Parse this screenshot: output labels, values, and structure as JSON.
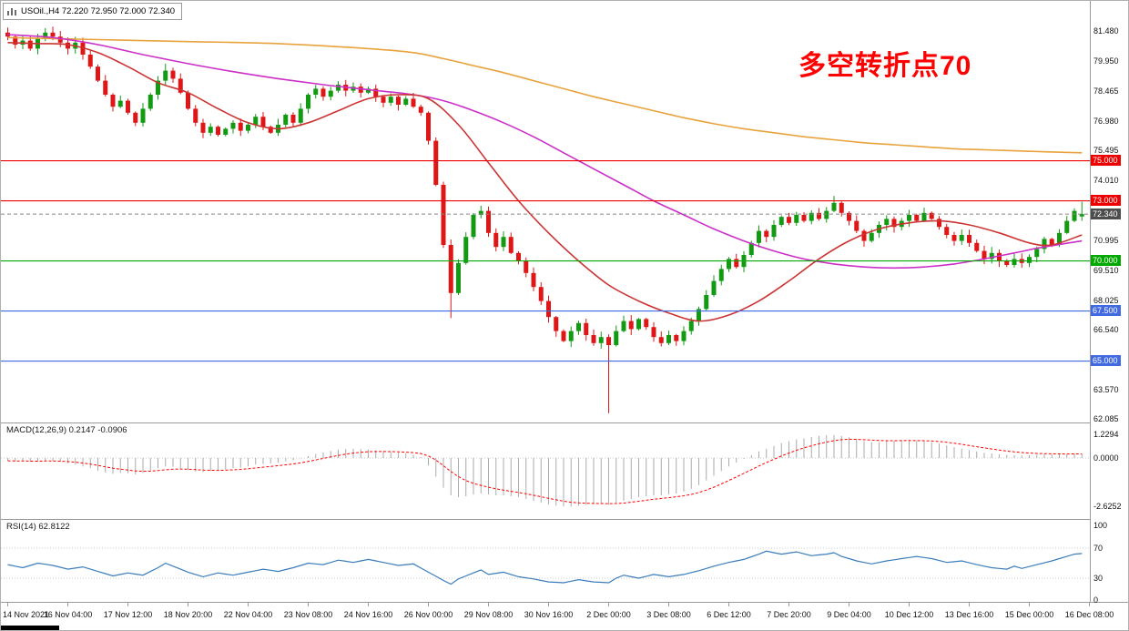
{
  "title_bar": {
    "text": "USOil.,H4 72.220 72.950 72.000 72.340"
  },
  "annotation": {
    "text": "多空转折点70",
    "color": "#FF0000"
  },
  "panels": {
    "macd": {
      "label": "MACD(12,26,9) 0.2147 -0.0906",
      "axis_labels": [
        "1.2294",
        "0.0000",
        "-2.6252"
      ]
    },
    "rsi": {
      "label": "RSI(14) 62.8122",
      "axis_labels": [
        "100",
        "70",
        "30",
        "0"
      ]
    }
  },
  "price_axis": {
    "labels": [
      "81.480",
      "79.950",
      "78.465",
      "76.980",
      "75.495",
      "74.010",
      "70.995",
      "69.510",
      "68.025",
      "66.540",
      "63.570",
      "62.085"
    ]
  },
  "hlines": [
    {
      "price": 75.0,
      "label": "75.000",
      "color": "#EE0000"
    },
    {
      "price": 73.0,
      "label": "73.000",
      "color": "#EE0000"
    },
    {
      "price": 70.0,
      "label": "70.000",
      "color": "#00A800"
    },
    {
      "price": 67.5,
      "label": "67.500",
      "color": "#4169E1"
    },
    {
      "price": 65.0,
      "label": "65.000",
      "color": "#4169E1"
    }
  ],
  "current_price": {
    "value": 72.34,
    "label": "72.340",
    "badge_color": "#4D4D4D"
  },
  "time_axis": {
    "labels": [
      {
        "bar": 0,
        "text": "14 Nov 2021"
      },
      {
        "bar": 8,
        "text": "16 Nov 04:00"
      },
      {
        "bar": 16,
        "text": "17 Nov 12:00"
      },
      {
        "bar": 24,
        "text": "18 Nov 20:00"
      },
      {
        "bar": 32,
        "text": "22 Nov 04:00"
      },
      {
        "bar": 40,
        "text": "23 Nov 08:00"
      },
      {
        "bar": 48,
        "text": "24 Nov 16:00"
      },
      {
        "bar": 56,
        "text": "26 Nov 00:00"
      },
      {
        "bar": 64,
        "text": "29 Nov 08:00"
      },
      {
        "bar": 72,
        "text": "30 Nov 16:00"
      },
      {
        "bar": 80,
        "text": "2 Dec 00:00"
      },
      {
        "bar": 88,
        "text": "3 Dec 08:00"
      },
      {
        "bar": 96,
        "text": "6 Dec 12:00"
      },
      {
        "bar": 104,
        "text": "7 Dec 20:00"
      },
      {
        "bar": 112,
        "text": "9 Dec 04:00"
      },
      {
        "bar": 120,
        "text": "10 Dec 12:00"
      },
      {
        "bar": 128,
        "text": "13 Dec 16:00"
      },
      {
        "bar": 136,
        "text": "15 Dec 00:00"
      },
      {
        "bar": 144,
        "text": "16 Dec 08:00"
      }
    ]
  },
  "ui": {
    "up_color": "#129A12",
    "down_color": "#E01616"
  },
  "chart_data": {
    "type": "candlestick",
    "symbol": "USOil",
    "timeframe": "H4",
    "ohlc_current": {
      "open": 72.22,
      "high": 72.95,
      "low": 72.0,
      "close": 72.34
    },
    "first_open": 81.4,
    "closes": [
      81.2,
      80.8,
      81.0,
      80.6,
      81.1,
      81.4,
      81.2,
      80.9,
      80.6,
      80.9,
      80.3,
      79.7,
      79.0,
      78.3,
      77.7,
      78.0,
      77.4,
      76.9,
      77.6,
      78.3,
      79.0,
      79.5,
      79.1,
      78.4,
      77.6,
      76.9,
      76.4,
      76.7,
      76.3,
      76.6,
      76.9,
      76.5,
      76.8,
      77.2,
      76.7,
      76.4,
      76.8,
      77.3,
      76.9,
      77.6,
      78.3,
      78.6,
      78.2,
      78.5,
      78.8,
      78.5,
      78.7,
      78.4,
      78.6,
      78.2,
      77.9,
      78.2,
      77.8,
      78.1,
      77.7,
      77.4,
      76.0,
      73.8,
      70.8,
      68.4,
      69.9,
      71.2,
      72.3,
      72.5,
      71.4,
      70.7,
      71.2,
      70.4,
      70.0,
      69.4,
      68.7,
      68.0,
      67.2,
      66.5,
      66.0,
      66.5,
      66.9,
      66.3,
      65.9,
      66.2,
      65.8,
      66.5,
      67.0,
      66.6,
      67.1,
      66.7,
      66.2,
      65.9,
      66.3,
      66.0,
      66.5,
      67.0,
      67.6,
      68.3,
      69.0,
      69.6,
      70.1,
      69.7,
      70.3,
      70.9,
      71.5,
      71.2,
      71.8,
      72.2,
      71.9,
      72.3,
      72.0,
      72.4,
      72.1,
      72.5,
      72.9,
      72.4,
      72.0,
      71.5,
      71.0,
      71.4,
      71.8,
      72.1,
      71.7,
      72.0,
      72.3,
      72.0,
      72.4,
      72.1,
      71.7,
      71.3,
      71.0,
      71.3,
      70.9,
      70.5,
      70.1,
      70.4,
      70.0,
      69.8,
      70.1,
      69.9,
      70.2,
      70.6,
      71.1,
      70.8,
      71.4,
      72.0,
      72.5,
      72.34
    ],
    "wick_overrides": {
      "5": {
        "high": 81.62
      },
      "21": {
        "high": 79.85
      },
      "59": {
        "low": 67.15
      },
      "80": {
        "low": 62.4
      },
      "110": {
        "high": 73.25
      },
      "143": {
        "open": 72.22,
        "high": 72.95,
        "low": 72.0
      }
    },
    "moving_averages": [
      {
        "name": "slow-ma",
        "color": "#E8A33D",
        "points": [
          [
            0,
            81.15
          ],
          [
            12,
            81.05
          ],
          [
            24,
            80.95
          ],
          [
            36,
            80.85
          ],
          [
            48,
            80.6
          ],
          [
            54,
            80.4
          ],
          [
            58,
            80.1
          ],
          [
            62,
            79.75
          ],
          [
            66,
            79.4
          ],
          [
            70,
            79.0
          ],
          [
            74,
            78.6
          ],
          [
            78,
            78.2
          ],
          [
            82,
            77.85
          ],
          [
            86,
            77.5
          ],
          [
            90,
            77.15
          ],
          [
            94,
            76.85
          ],
          [
            98,
            76.6
          ],
          [
            102,
            76.4
          ],
          [
            106,
            76.2
          ],
          [
            110,
            76.05
          ],
          [
            114,
            75.9
          ],
          [
            118,
            75.8
          ],
          [
            122,
            75.7
          ],
          [
            126,
            75.6
          ],
          [
            130,
            75.55
          ],
          [
            134,
            75.5
          ],
          [
            138,
            75.45
          ],
          [
            143,
            75.4
          ]
        ]
      },
      {
        "name": "mid-ma",
        "color": "#CC2EC8",
        "points": [
          [
            0,
            81.3
          ],
          [
            6,
            81.15
          ],
          [
            12,
            80.8
          ],
          [
            18,
            80.3
          ],
          [
            24,
            79.85
          ],
          [
            30,
            79.45
          ],
          [
            36,
            79.1
          ],
          [
            42,
            78.8
          ],
          [
            48,
            78.55
          ],
          [
            54,
            78.3
          ],
          [
            58,
            78.0
          ],
          [
            62,
            77.5
          ],
          [
            66,
            76.9
          ],
          [
            70,
            76.2
          ],
          [
            74,
            75.4
          ],
          [
            78,
            74.6
          ],
          [
            82,
            73.8
          ],
          [
            86,
            73.0
          ],
          [
            90,
            72.3
          ],
          [
            94,
            71.6
          ],
          [
            98,
            71.0
          ],
          [
            102,
            70.5
          ],
          [
            106,
            70.1
          ],
          [
            110,
            69.85
          ],
          [
            114,
            69.7
          ],
          [
            118,
            69.65
          ],
          [
            122,
            69.7
          ],
          [
            126,
            69.85
          ],
          [
            130,
            70.1
          ],
          [
            134,
            70.4
          ],
          [
            138,
            70.7
          ],
          [
            143,
            71.0
          ]
        ]
      },
      {
        "name": "fast-ma",
        "color": "#CC3333",
        "points": [
          [
            0,
            80.9
          ],
          [
            4,
            80.85
          ],
          [
            8,
            80.8
          ],
          [
            12,
            80.4
          ],
          [
            16,
            79.7
          ],
          [
            20,
            78.9
          ],
          [
            24,
            78.4
          ],
          [
            28,
            77.6
          ],
          [
            32,
            76.9
          ],
          [
            36,
            76.6
          ],
          [
            40,
            76.9
          ],
          [
            44,
            77.5
          ],
          [
            48,
            78.1
          ],
          [
            52,
            78.3
          ],
          [
            56,
            78.1
          ],
          [
            60,
            76.8
          ],
          [
            64,
            74.9
          ],
          [
            68,
            73.0
          ],
          [
            72,
            71.4
          ],
          [
            76,
            70.0
          ],
          [
            80,
            68.8
          ],
          [
            84,
            68.0
          ],
          [
            88,
            67.4
          ],
          [
            92,
            67.0
          ],
          [
            96,
            67.3
          ],
          [
            100,
            68.0
          ],
          [
            104,
            69.0
          ],
          [
            108,
            70.1
          ],
          [
            112,
            71.0
          ],
          [
            116,
            71.6
          ],
          [
            120,
            71.9
          ],
          [
            124,
            72.0
          ],
          [
            128,
            71.8
          ],
          [
            132,
            71.4
          ],
          [
            136,
            70.9
          ],
          [
            139,
            70.8
          ],
          [
            143,
            71.3
          ]
        ]
      }
    ],
    "macd": {
      "hist_color": "#ABABAB",
      "signal_color": "#FF0000",
      "histogram": [
        -0.15,
        -0.18,
        -0.16,
        -0.2,
        -0.18,
        -0.14,
        -0.16,
        -0.2,
        -0.28,
        -0.35,
        -0.45,
        -0.55,
        -0.68,
        -0.78,
        -0.85,
        -0.8,
        -0.82,
        -0.88,
        -0.8,
        -0.68,
        -0.55,
        -0.45,
        -0.48,
        -0.55,
        -0.65,
        -0.72,
        -0.75,
        -0.7,
        -0.68,
        -0.62,
        -0.55,
        -0.52,
        -0.45,
        -0.35,
        -0.32,
        -0.3,
        -0.25,
        -0.18,
        -0.12,
        -0.02,
        0.1,
        0.22,
        0.3,
        0.38,
        0.45,
        0.48,
        0.5,
        0.48,
        0.45,
        0.4,
        0.35,
        0.32,
        0.28,
        0.25,
        0.18,
        0.05,
        -0.4,
        -1.0,
        -1.6,
        -2.0,
        -2.1,
        -2.05,
        -1.95,
        -1.9,
        -1.95,
        -2.0,
        -2.0,
        -2.05,
        -2.1,
        -2.2,
        -2.3,
        -2.4,
        -2.5,
        -2.55,
        -2.6,
        -2.6,
        -2.55,
        -2.5,
        -2.48,
        -2.45,
        -2.5,
        -2.4,
        -2.3,
        -2.2,
        -2.1,
        -2.05,
        -2.0,
        -2.0,
        -1.95,
        -1.9,
        -1.8,
        -1.65,
        -1.45,
        -1.2,
        -0.95,
        -0.7,
        -0.45,
        -0.25,
        -0.05,
        0.15,
        0.35,
        0.5,
        0.65,
        0.8,
        0.9,
        1.0,
        1.05,
        1.12,
        1.18,
        1.22,
        1.23,
        1.18,
        1.1,
        1.0,
        0.9,
        0.85,
        0.85,
        0.9,
        0.92,
        0.95,
        0.95,
        0.92,
        0.9,
        0.85,
        0.78,
        0.68,
        0.58,
        0.5,
        0.42,
        0.35,
        0.28,
        0.25,
        0.2,
        0.16,
        0.15,
        0.14,
        0.15,
        0.17,
        0.19,
        0.18,
        0.2,
        0.21,
        0.22,
        0.2147
      ]
    },
    "rsi": {
      "color": "#3B7DBB",
      "levels": [
        30,
        70
      ],
      "current": 62.8122,
      "points": [
        [
          0,
          48
        ],
        [
          2,
          44
        ],
        [
          4,
          50
        ],
        [
          6,
          47
        ],
        [
          8,
          42
        ],
        [
          10,
          45
        ],
        [
          12,
          39
        ],
        [
          14,
          33
        ],
        [
          16,
          37
        ],
        [
          18,
          34
        ],
        [
          20,
          44
        ],
        [
          21,
          50
        ],
        [
          22,
          46
        ],
        [
          24,
          38
        ],
        [
          26,
          32
        ],
        [
          28,
          37
        ],
        [
          30,
          34
        ],
        [
          32,
          38
        ],
        [
          34,
          42
        ],
        [
          36,
          39
        ],
        [
          38,
          44
        ],
        [
          40,
          50
        ],
        [
          42,
          48
        ],
        [
          44,
          54
        ],
        [
          46,
          51
        ],
        [
          48,
          55
        ],
        [
          50,
          51
        ],
        [
          52,
          47
        ],
        [
          54,
          49
        ],
        [
          56,
          38
        ],
        [
          58,
          27
        ],
        [
          59,
          22
        ],
        [
          60,
          29
        ],
        [
          62,
          37
        ],
        [
          63,
          41
        ],
        [
          64,
          35
        ],
        [
          66,
          38
        ],
        [
          68,
          32
        ],
        [
          70,
          29
        ],
        [
          72,
          25
        ],
        [
          74,
          24
        ],
        [
          76,
          28
        ],
        [
          78,
          25
        ],
        [
          80,
          24
        ],
        [
          81,
          30
        ],
        [
          82,
          34
        ],
        [
          84,
          30
        ],
        [
          86,
          35
        ],
        [
          88,
          32
        ],
        [
          90,
          35
        ],
        [
          92,
          40
        ],
        [
          94,
          46
        ],
        [
          96,
          51
        ],
        [
          98,
          55
        ],
        [
          100,
          62
        ],
        [
          101,
          66
        ],
        [
          103,
          62
        ],
        [
          105,
          65
        ],
        [
          107,
          60
        ],
        [
          109,
          62
        ],
        [
          110,
          64
        ],
        [
          111,
          59
        ],
        [
          113,
          53
        ],
        [
          115,
          49
        ],
        [
          117,
          53
        ],
        [
          119,
          56
        ],
        [
          121,
          59
        ],
        [
          123,
          56
        ],
        [
          125,
          51
        ],
        [
          127,
          53
        ],
        [
          129,
          48
        ],
        [
          131,
          44
        ],
        [
          133,
          42
        ],
        [
          134,
          46
        ],
        [
          135,
          43
        ],
        [
          137,
          48
        ],
        [
          139,
          53
        ],
        [
          141,
          59
        ],
        [
          142,
          62
        ],
        [
          143,
          62.81
        ]
      ]
    }
  }
}
